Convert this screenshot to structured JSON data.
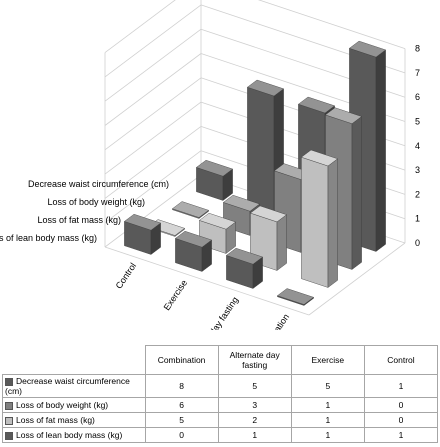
{
  "chart_data": {
    "type": "bar",
    "categories": [
      "Control",
      "Exercise",
      "Alternate day fasting",
      "Combination"
    ],
    "series": [
      {
        "name": "Decrease waist circumference (cm)",
        "values": [
          1,
          5,
          5,
          8
        ],
        "color": "#595959"
      },
      {
        "name": "Loss of body weight (kg)",
        "values": [
          0,
          1,
          3,
          6
        ],
        "color": "#808080"
      },
      {
        "name": "Loss of fat mass (kg)",
        "values": [
          0,
          1,
          2,
          5
        ],
        "color": "#bfbfbf"
      },
      {
        "name": "Loss of lean body mass (kg)",
        "values": [
          1,
          1,
          1,
          0
        ],
        "color": "#595959"
      }
    ],
    "yticks": [
      "0",
      "1",
      "2",
      "3",
      "4",
      "5",
      "6",
      "7",
      "8"
    ],
    "ylim": [
      0,
      8
    ],
    "grid": true,
    "table": {
      "columns": [
        "Combination",
        "Alternate day fasting",
        "Exercise",
        "Control"
      ],
      "rows": [
        {
          "label": "Decrease waist circumference (cm)",
          "values": [
            "8",
            "5",
            "5",
            "1"
          ],
          "color": "#595959"
        },
        {
          "label": "Loss of body weight (kg)",
          "values": [
            "6",
            "3",
            "1",
            "0"
          ],
          "color": "#808080"
        },
        {
          "label": "Loss of fat mass (kg)",
          "values": [
            "5",
            "2",
            "1",
            "0"
          ],
          "color": "#bfbfbf"
        },
        {
          "label": "Loss of lean body mass (kg)",
          "values": [
            "0",
            "1",
            "1",
            "1"
          ],
          "color": "#595959"
        }
      ]
    }
  }
}
